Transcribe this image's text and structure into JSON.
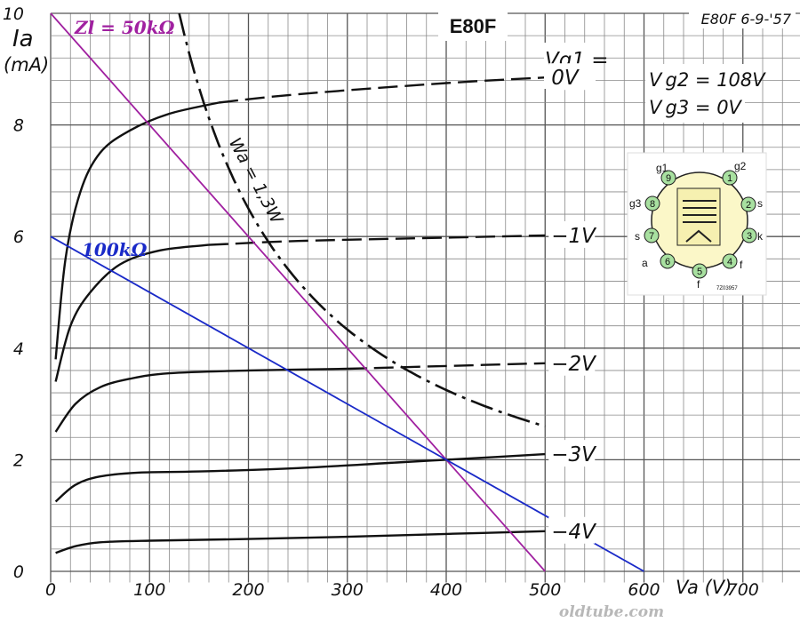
{
  "header": {
    "tube": "E80F",
    "stamp": "E80F 6-9-'57",
    "pin_code": "7Z03957",
    "watermark": "oldtube.com"
  },
  "conditions": {
    "vg2": "V g2 = 108V",
    "vg3": "V g3 = 0V"
  },
  "pinout": {
    "pins": [
      "1",
      "2",
      "3",
      "4",
      "5",
      "6",
      "7",
      "8",
      "9"
    ],
    "labels": {
      "g1": "g1",
      "g2": "g2",
      "g3": "g3",
      "s_right": "s",
      "s_left": "s",
      "k": "k",
      "f_right": "f",
      "f_bottom": "f",
      "a": "a"
    },
    "colors": {
      "pin_fill": "#a8e0a0",
      "bulb_fill": "#fbf7c8",
      "inner_fill": "#f6f0b0"
    }
  },
  "chart_data": {
    "type": "line",
    "xlabel": "Va (V)",
    "ylabel": "Ia",
    "yunit": "(mA)",
    "xlim": [
      0,
      760
    ],
    "ylim": [
      -0.2,
      10
    ],
    "xticks": [
      "0",
      "100",
      "200",
      "300",
      "400",
      "500",
      "600",
      "700"
    ],
    "yticks": [
      "0",
      "2",
      "4",
      "6",
      "8",
      "10"
    ],
    "grid": true,
    "legend_title": "Vg1 =",
    "series": [
      {
        "name": "0V",
        "points": [
          [
            5,
            3.8
          ],
          [
            15,
            5.6
          ],
          [
            30,
            6.8
          ],
          [
            50,
            7.5
          ],
          [
            80,
            7.9
          ],
          [
            120,
            8.2
          ],
          [
            170,
            8.4
          ],
          [
            250,
            8.55
          ],
          [
            400,
            8.75
          ],
          [
            500,
            8.85
          ]
        ],
        "dashed_from": 200
      },
      {
        "name": "−1V",
        "points": [
          [
            5,
            3.4
          ],
          [
            20,
            4.4
          ],
          [
            40,
            5.0
          ],
          [
            70,
            5.5
          ],
          [
            110,
            5.75
          ],
          [
            160,
            5.85
          ],
          [
            250,
            5.92
          ],
          [
            400,
            5.98
          ],
          [
            500,
            6.02
          ]
        ],
        "dashed_from": 220
      },
      {
        "name": "−2V",
        "points": [
          [
            5,
            2.5
          ],
          [
            25,
            3.0
          ],
          [
            50,
            3.3
          ],
          [
            80,
            3.45
          ],
          [
            120,
            3.55
          ],
          [
            200,
            3.6
          ],
          [
            300,
            3.63
          ],
          [
            400,
            3.68
          ],
          [
            500,
            3.73
          ]
        ],
        "dashed_from": 360
      },
      {
        "name": "−3V",
        "points": [
          [
            5,
            1.25
          ],
          [
            25,
            1.55
          ],
          [
            50,
            1.7
          ],
          [
            90,
            1.77
          ],
          [
            150,
            1.79
          ],
          [
            250,
            1.85
          ],
          [
            350,
            1.95
          ],
          [
            450,
            2.05
          ],
          [
            500,
            2.1
          ]
        ]
      },
      {
        "name": "−4V",
        "points": [
          [
            5,
            0.33
          ],
          [
            25,
            0.45
          ],
          [
            50,
            0.52
          ],
          [
            100,
            0.55
          ],
          [
            200,
            0.58
          ],
          [
            300,
            0.62
          ],
          [
            400,
            0.67
          ],
          [
            500,
            0.72
          ]
        ]
      }
    ],
    "power_curve": {
      "label": "Wa = 1,3W",
      "watts": 1.3,
      "x_range": [
        130,
        500
      ]
    },
    "load_lines": [
      {
        "label": "Zl = 50kΩ",
        "points": [
          [
            0,
            10
          ],
          [
            500,
            0
          ]
        ],
        "color": "#a020a0"
      },
      {
        "label": "100kΩ",
        "points": [
          [
            0,
            6
          ],
          [
            600,
            0
          ]
        ],
        "color": "#1a2ac8"
      }
    ]
  }
}
